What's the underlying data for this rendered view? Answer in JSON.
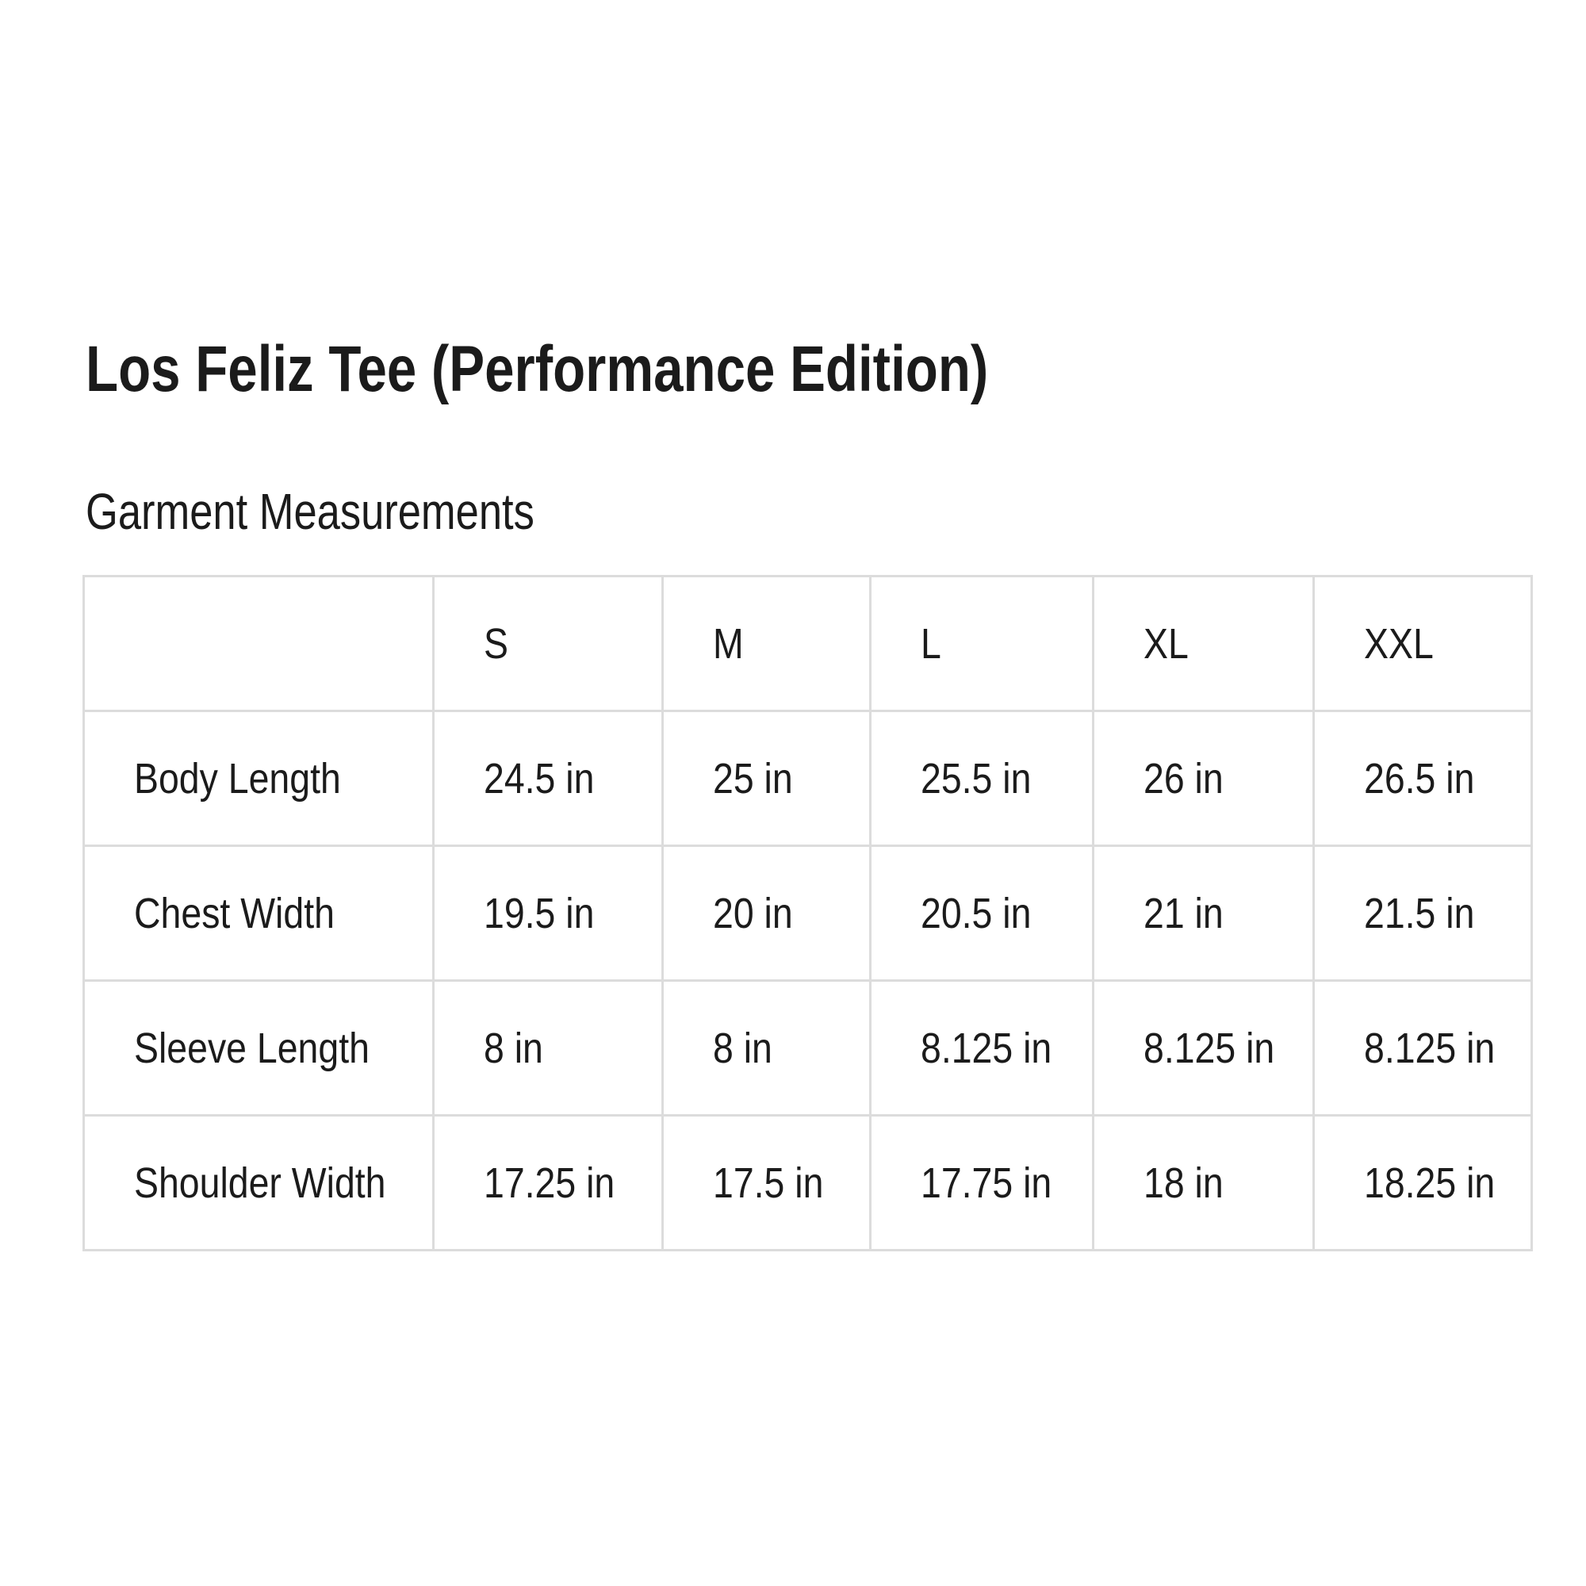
{
  "header": {
    "title": "Los Feliz Tee (Performance Edition)",
    "subtitle": "Garment Measurements"
  },
  "table": {
    "corner_label": "",
    "columns": [
      "S",
      "M",
      "L",
      "XL",
      "XXL"
    ],
    "rows": [
      {
        "label": "Body Length",
        "values": [
          "24.5 in",
          "25 in",
          "25.5 in",
          "26 in",
          "26.5 in"
        ]
      },
      {
        "label": "Chest Width",
        "values": [
          "19.5 in",
          "20 in",
          "20.5 in",
          "21 in",
          "21.5 in"
        ]
      },
      {
        "label": "Sleeve Length",
        "values": [
          "8 in",
          "8 in",
          "8.125 in",
          "8.125 in",
          "8.125 in"
        ]
      },
      {
        "label": "Shoulder Width",
        "values": [
          "17.25 in",
          "17.5 in",
          "17.75 in",
          "18 in",
          "18.25 in"
        ]
      }
    ],
    "unit": "in"
  },
  "colors": {
    "text": "#1b1b1b",
    "border": "#dcdcdc",
    "background": "#ffffff"
  }
}
